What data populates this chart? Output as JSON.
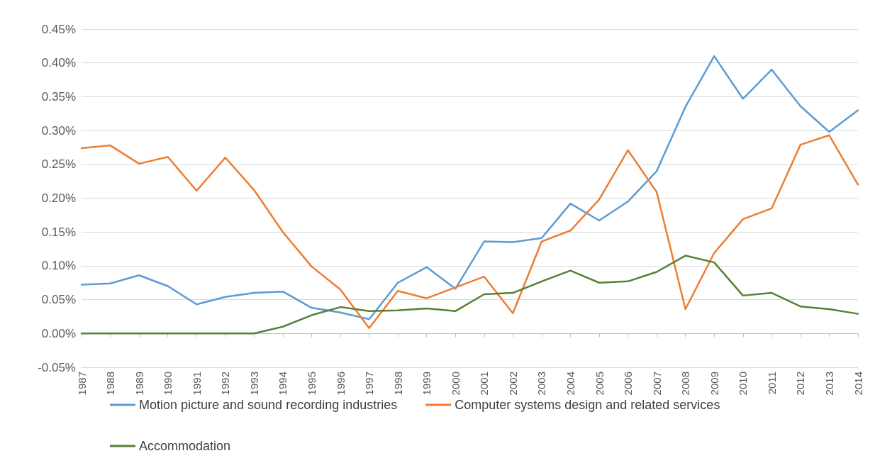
{
  "chart_data": {
    "type": "line",
    "categories": [
      "1987",
      "1988",
      "1989",
      "1990",
      "1991",
      "1992",
      "1993",
      "1994",
      "1995",
      "1996",
      "1997",
      "1998",
      "1999",
      "2000",
      "2001",
      "2002",
      "2003",
      "2004",
      "2005",
      "2006",
      "2007",
      "2008",
      "2009",
      "2010",
      "2011",
      "2012",
      "2013",
      "2014"
    ],
    "series": [
      {
        "name": "Motion picture and sound recording industries",
        "color": "#5b9bd5",
        "values": [
          0.072,
          0.074,
          0.086,
          0.07,
          0.043,
          0.054,
          0.06,
          0.062,
          0.038,
          0.031,
          0.021,
          0.075,
          0.098,
          0.066,
          0.136,
          0.135,
          0.141,
          0.192,
          0.167,
          0.195,
          0.24,
          0.335,
          0.41,
          0.347,
          0.39,
          0.336,
          0.298,
          0.33
        ]
      },
      {
        "name": "Computer systems design and related services",
        "color": "#ed7d31",
        "values": [
          0.274,
          0.278,
          0.251,
          0.261,
          0.211,
          0.26,
          0.212,
          0.15,
          0.099,
          0.065,
          0.008,
          0.063,
          0.052,
          0.068,
          0.084,
          0.03,
          0.136,
          0.152,
          0.198,
          0.271,
          0.209,
          0.036,
          0.119,
          0.169,
          0.185,
          0.279,
          0.293,
          0.22
        ]
      },
      {
        "name": "Accommodation",
        "color": "#548235",
        "values": [
          0,
          0,
          0,
          0,
          0,
          0,
          0,
          0.01,
          0.027,
          0.039,
          0.033,
          0.034,
          0.037,
          0.033,
          0.058,
          0.06,
          0.077,
          0.093,
          0.075,
          0.077,
          0.091,
          0.115,
          0.105,
          0.056,
          0.06,
          0.04,
          0.036,
          0.029
        ]
      }
    ],
    "ylim": [
      -0.05,
      0.45
    ],
    "yticks": [
      {
        "value": -0.05,
        "label": "-0.05%"
      },
      {
        "value": 0,
        "label": "0.00%"
      },
      {
        "value": 0.05,
        "label": "0.05%"
      },
      {
        "value": 0.1,
        "label": "0.10%"
      },
      {
        "value": 0.15,
        "label": "0.15%"
      },
      {
        "value": 0.2,
        "label": "0.20%"
      },
      {
        "value": 0.25,
        "label": "0.25%"
      },
      {
        "value": 0.3,
        "label": "0.30%"
      },
      {
        "value": 0.35,
        "label": "0.35%"
      },
      {
        "value": 0.4,
        "label": "0.40%"
      },
      {
        "value": 0.45,
        "label": "0.45%"
      }
    ],
    "grid": "y",
    "legend": "bottom",
    "marker": "none",
    "line_style": "solid"
  }
}
